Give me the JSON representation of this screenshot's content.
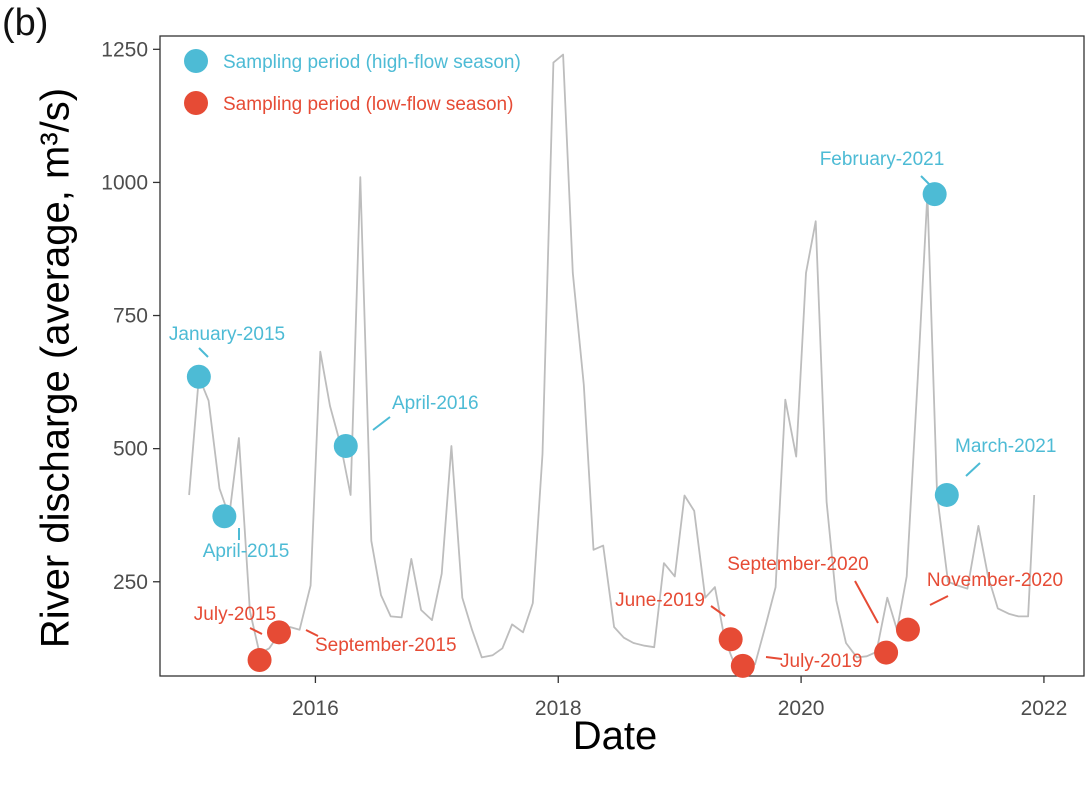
{
  "panel_label": "(b)",
  "chart_data": {
    "type": "line",
    "xlabel": "Date",
    "ylabel": "River discharge (average, m³/s)",
    "xlim": [
      2014.72,
      2022.33
    ],
    "ylim": [
      73,
      1275
    ],
    "x_ticks": [
      2016,
      2018,
      2020,
      2022
    ],
    "y_ticks": [
      250,
      500,
      750,
      1000,
      1250
    ],
    "grid": false,
    "legend_position": "top-left",
    "colors": {
      "line": "#bdbdbd",
      "high": "#4dbbd5",
      "low": "#e64b35"
    },
    "series": [
      {
        "x": [
          2014.96,
          2015.04,
          2015.12,
          2015.21,
          2015.29,
          2015.37,
          2015.46,
          2015.54,
          2015.62,
          2015.71,
          2015.79,
          2015.87,
          2015.96,
          2016.04,
          2016.12,
          2016.21,
          2016.29,
          2016.37,
          2016.46,
          2016.54,
          2016.62,
          2016.71,
          2016.79,
          2016.87,
          2016.96,
          2017.04,
          2017.12,
          2017.21,
          2017.29,
          2017.37,
          2017.46,
          2017.54,
          2017.62,
          2017.71,
          2017.79,
          2017.87,
          2017.96,
          2018.04,
          2018.12,
          2018.21,
          2018.29,
          2018.37,
          2018.46,
          2018.54,
          2018.62,
          2018.71,
          2018.79,
          2018.87,
          2018.96,
          2019.04,
          2019.12,
          2019.21,
          2019.29,
          2019.37,
          2019.46,
          2019.54,
          2019.62,
          2019.71,
          2019.79,
          2019.87,
          2019.96,
          2020.04,
          2020.12,
          2020.21,
          2020.29,
          2020.37,
          2020.46,
          2020.54,
          2020.62,
          2020.71,
          2020.79,
          2020.87,
          2020.96,
          2021.04,
          2021.12,
          2021.21,
          2021.29,
          2021.37,
          2021.46,
          2021.54,
          2021.62,
          2021.71,
          2021.79,
          2021.87,
          2021.92
        ],
        "values": [
          413,
          635,
          590,
          425,
          373,
          520,
          195,
          115,
          125,
          155,
          165,
          160,
          243,
          682,
          580,
          505,
          413,
          1010,
          327,
          225,
          185,
          183,
          293,
          197,
          178,
          265,
          505,
          220,
          160,
          108,
          112,
          125,
          170,
          155,
          210,
          490,
          1225,
          1240,
          830,
          620,
          310,
          318,
          165,
          145,
          135,
          130,
          127,
          285,
          260,
          412,
          383,
          220,
          240,
          143,
          90,
          105,
          95,
          170,
          240,
          592,
          485,
          830,
          927,
          400,
          215,
          135,
          108,
          110,
          118,
          220,
          160,
          260,
          630,
          978,
          413,
          250,
          243,
          237,
          355,
          260,
          200,
          190,
          185,
          185,
          413
        ]
      }
    ],
    "samples": [
      {
        "label": "January-2015",
        "x": 2015.04,
        "y": 635,
        "season": "high"
      },
      {
        "label": "April-2015",
        "x": 2015.25,
        "y": 373,
        "season": "high"
      },
      {
        "label": "April-2016",
        "x": 2016.25,
        "y": 505,
        "season": "high"
      },
      {
        "label": "February-2021",
        "x": 2021.1,
        "y": 978,
        "season": "high"
      },
      {
        "label": "March-2021",
        "x": 2021.2,
        "y": 413,
        "season": "high"
      },
      {
        "label": "July-2015",
        "x": 2015.54,
        "y": 103,
        "season": "low"
      },
      {
        "label": "September-2015",
        "x": 2015.7,
        "y": 155,
        "season": "low"
      },
      {
        "label": "June-2019",
        "x": 2019.42,
        "y": 142,
        "season": "low"
      },
      {
        "label": "July-2019",
        "x": 2019.52,
        "y": 92,
        "season": "low"
      },
      {
        "label": "September-2020",
        "x": 2020.7,
        "y": 117,
        "season": "low"
      },
      {
        "label": "November-2020",
        "x": 2020.88,
        "y": 160,
        "season": "low"
      }
    ],
    "legend": [
      {
        "label": "Sampling period (high-flow season)",
        "season": "high"
      },
      {
        "label": "Sampling period (low-flow season)",
        "season": "low"
      }
    ]
  }
}
